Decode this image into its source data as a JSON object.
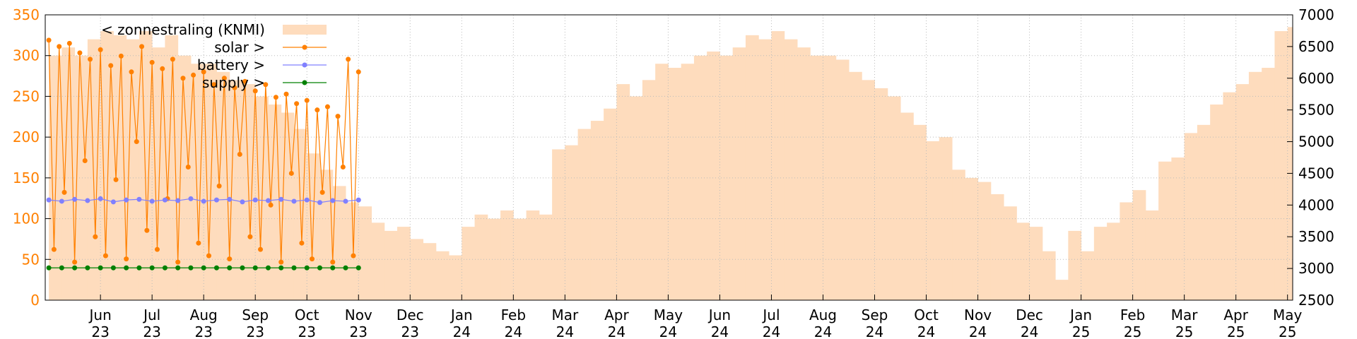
{
  "chart_data": {
    "type": "line",
    "xlim": [
      -0.07,
      24.1
    ],
    "xticks": [
      {
        "value": 1,
        "label": "Jun 23"
      },
      {
        "value": 2,
        "label": "Jul 23"
      },
      {
        "value": 3,
        "label": "Aug 23"
      },
      {
        "value": 4,
        "label": "Sep 23"
      },
      {
        "value": 5,
        "label": "Oct 23"
      },
      {
        "value": 6,
        "label": "Nov 23"
      },
      {
        "value": 7,
        "label": "Dec 23"
      },
      {
        "value": 8,
        "label": "Jan 24"
      },
      {
        "value": 9,
        "label": "Feb 24"
      },
      {
        "value": 10,
        "label": "Mar 24"
      },
      {
        "value": 11,
        "label": "Apr 24"
      },
      {
        "value": 12,
        "label": "May 24"
      },
      {
        "value": 13,
        "label": "Jun 24"
      },
      {
        "value": 14,
        "label": "Jul 24"
      },
      {
        "value": 15,
        "label": "Aug 24"
      },
      {
        "value": 16,
        "label": "Sep 24"
      },
      {
        "value": 17,
        "label": "Oct 24"
      },
      {
        "value": 18,
        "label": "Nov 24"
      },
      {
        "value": 19,
        "label": "Dec 24"
      },
      {
        "value": 20,
        "label": "Jan 25"
      },
      {
        "value": 21,
        "label": "Feb 25"
      },
      {
        "value": 22,
        "label": "Mar 25"
      },
      {
        "value": 23,
        "label": "Apr 25"
      },
      {
        "value": 24,
        "label": "May 25"
      }
    ],
    "ylim": [
      0,
      350
    ],
    "yticks": [
      0,
      50,
      100,
      150,
      200,
      250,
      300,
      350
    ],
    "y2lim": [
      2500,
      7000
    ],
    "y2ticks": [
      2500,
      3000,
      3500,
      4000,
      4500,
      5000,
      5500,
      6000,
      6500,
      7000
    ],
    "ytick_color": "#ff8000",
    "grid": true,
    "legend": "upper left",
    "series": [
      {
        "name": "< zonnestraling (KNMI)",
        "type": "area",
        "color": "#fedcbd",
        "x": [
          0,
          0.25,
          0.5,
          0.75,
          1,
          1.25,
          1.5,
          1.75,
          2,
          2.25,
          2.5,
          2.75,
          3,
          3.25,
          3.5,
          3.75,
          4,
          4.25,
          4.5,
          4.75,
          5,
          5.25,
          5.5,
          5.75,
          6,
          6.25,
          6.5,
          6.75,
          7,
          7.25,
          7.5,
          7.75,
          8,
          8.25,
          8.5,
          8.75,
          9,
          9.25,
          9.5,
          9.75,
          10,
          10.25,
          10.5,
          10.75,
          11,
          11.25,
          11.5,
          11.75,
          12,
          12.25,
          12.5,
          12.75,
          13,
          13.25,
          13.5,
          13.75,
          14,
          14.25,
          14.5,
          14.75,
          15,
          15.25,
          15.5,
          15.75,
          16,
          16.25,
          16.5,
          16.75,
          17,
          17.25,
          17.5,
          17.75,
          18,
          18.25,
          18.5,
          18.75,
          19,
          19.25,
          19.5,
          19.75,
          20,
          20.25,
          20.5,
          20.75,
          21,
          21.25,
          21.5,
          21.75,
          22,
          22.25,
          22.5,
          22.75,
          23,
          23.25,
          23.5,
          23.75,
          24
        ],
        "values": [
          300,
          310,
          300,
          320,
          330,
          325,
          320,
          330,
          310,
          325,
          300,
          290,
          290,
          280,
          270,
          265,
          250,
          240,
          230,
          210,
          180,
          160,
          140,
          120,
          115,
          95,
          85,
          90,
          75,
          70,
          60,
          55,
          90,
          105,
          100,
          110,
          100,
          110,
          105,
          185,
          190,
          210,
          220,
          235,
          265,
          250,
          270,
          290,
          285,
          290,
          300,
          305,
          300,
          310,
          325,
          320,
          330,
          320,
          310,
          300,
          300,
          295,
          280,
          270,
          260,
          250,
          230,
          215,
          195,
          200,
          160,
          150,
          145,
          130,
          115,
          95,
          90,
          60,
          25,
          85,
          60,
          90,
          95,
          120,
          135,
          110,
          170,
          175,
          205,
          215,
          240,
          255,
          265,
          280,
          285,
          330,
          335
        ]
      },
      {
        "name": "solar >",
        "type": "line",
        "axis": "y2",
        "color": "#ff8000",
        "x": [
          0,
          0.1,
          0.2,
          0.3,
          0.4,
          0.5,
          0.6,
          0.7,
          0.8,
          0.9,
          1,
          1.1,
          1.2,
          1.3,
          1.4,
          1.5,
          1.6,
          1.7,
          1.8,
          1.9,
          2,
          2.1,
          2.2,
          2.3,
          2.4,
          2.5,
          2.6,
          2.7,
          2.8,
          2.9,
          3,
          3.1,
          3.2,
          3.3,
          3.4,
          3.5,
          3.6,
          3.7,
          3.8,
          3.9,
          4,
          4.1,
          4.2,
          4.3,
          4.4,
          4.5,
          4.6,
          4.7,
          4.8,
          4.9,
          5,
          5.1,
          5.2,
          5.3,
          5.4,
          5.5,
          5.6,
          5.7,
          5.8,
          5.9,
          6
        ],
        "values": [
          6600,
          3300,
          6500,
          4200,
          6550,
          3100,
          6400,
          4700,
          6300,
          3500,
          6450,
          3200,
          6200,
          4400,
          6350,
          3150,
          6100,
          5000,
          6500,
          3600,
          6250,
          3300,
          6150,
          4100,
          6300,
          3100,
          6000,
          4600,
          6050,
          3400,
          6100,
          3200,
          5900,
          4300,
          6000,
          3150,
          5850,
          4800,
          5950,
          3500,
          5800,
          3300,
          5900,
          4000,
          5700,
          3100,
          5750,
          4500,
          5600,
          3400,
          5650,
          3150,
          5500,
          4200,
          5550,
          3100,
          5400,
          4600,
          6300,
          3200,
          6100
        ]
      },
      {
        "name": "battery >",
        "type": "line",
        "axis": "y2",
        "color": "#8080ff",
        "x": [
          0,
          0.25,
          0.5,
          0.75,
          1,
          1.25,
          1.5,
          1.75,
          2,
          2.25,
          2.5,
          2.75,
          3,
          3.25,
          3.5,
          3.75,
          4,
          4.25,
          4.5,
          4.75,
          5,
          5.25,
          5.5,
          5.75,
          6
        ],
        "values": [
          4080,
          4060,
          4090,
          4070,
          4100,
          4050,
          4080,
          4090,
          4060,
          4080,
          4070,
          4100,
          4060,
          4080,
          4090,
          4050,
          4080,
          4070,
          4090,
          4060,
          4080,
          4040,
          4070,
          4060,
          4080
        ]
      },
      {
        "name": "supply >",
        "type": "line",
        "axis": "y2",
        "color": "#008000",
        "x": [
          0,
          0.25,
          0.5,
          0.75,
          1,
          1.25,
          1.5,
          1.75,
          2,
          2.25,
          2.5,
          2.75,
          3,
          3.25,
          3.5,
          3.75,
          4,
          4.25,
          4.5,
          4.75,
          5,
          5.25,
          5.5,
          5.75,
          6
        ],
        "values": [
          3010,
          3010,
          3010,
          3010,
          3010,
          3010,
          3010,
          3010,
          3010,
          3010,
          3010,
          3010,
          3010,
          3010,
          3010,
          3010,
          3010,
          3010,
          3010,
          3010,
          3010,
          3010,
          3010,
          3010,
          3010
        ]
      }
    ]
  }
}
